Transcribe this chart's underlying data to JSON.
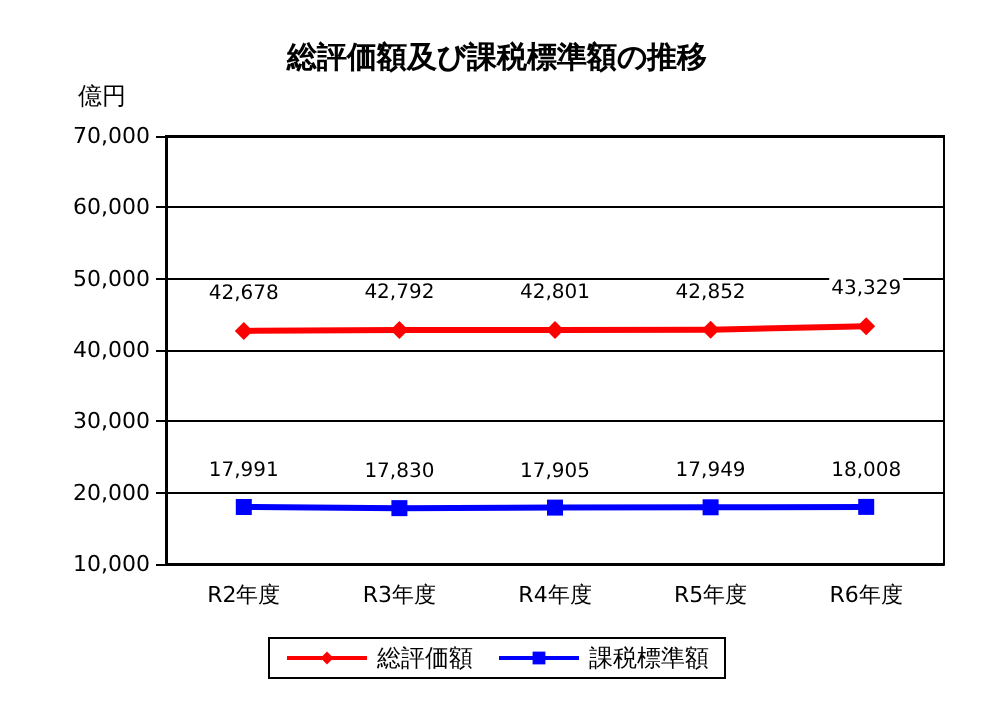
{
  "chart_data": {
    "type": "line",
    "title": "総評価額及び課税標準額の推移",
    "ylabel": "億円",
    "categories": [
      "R2年度",
      "R3年度",
      "R4年度",
      "R5年度",
      "R6年度"
    ],
    "series": [
      {
        "name": "総評価額",
        "color": "#ff0000",
        "marker": "diamond",
        "values": [
          42678,
          42792,
          42801,
          42852,
          43329
        ],
        "value_labels": [
          "42,678",
          "42,792",
          "42,801",
          "42,852",
          "43,329"
        ]
      },
      {
        "name": "課税標準額",
        "color": "#0000ff",
        "marker": "square",
        "values": [
          17991,
          17830,
          17905,
          17949,
          18008
        ],
        "value_labels": [
          "17,991",
          "17,830",
          "17,905",
          "17,949",
          "18,008"
        ]
      }
    ],
    "ylim": [
      10000,
      70000
    ],
    "yticks": [
      {
        "value": 10000,
        "label": "10,000"
      },
      {
        "value": 20000,
        "label": "20,000"
      },
      {
        "value": 30000,
        "label": "30,000"
      },
      {
        "value": 40000,
        "label": "40,000"
      },
      {
        "value": 50000,
        "label": "50,000"
      },
      {
        "value": 60000,
        "label": "60,000"
      },
      {
        "value": 70000,
        "label": "70,000"
      }
    ],
    "grid": "y",
    "legend": "bottom"
  }
}
